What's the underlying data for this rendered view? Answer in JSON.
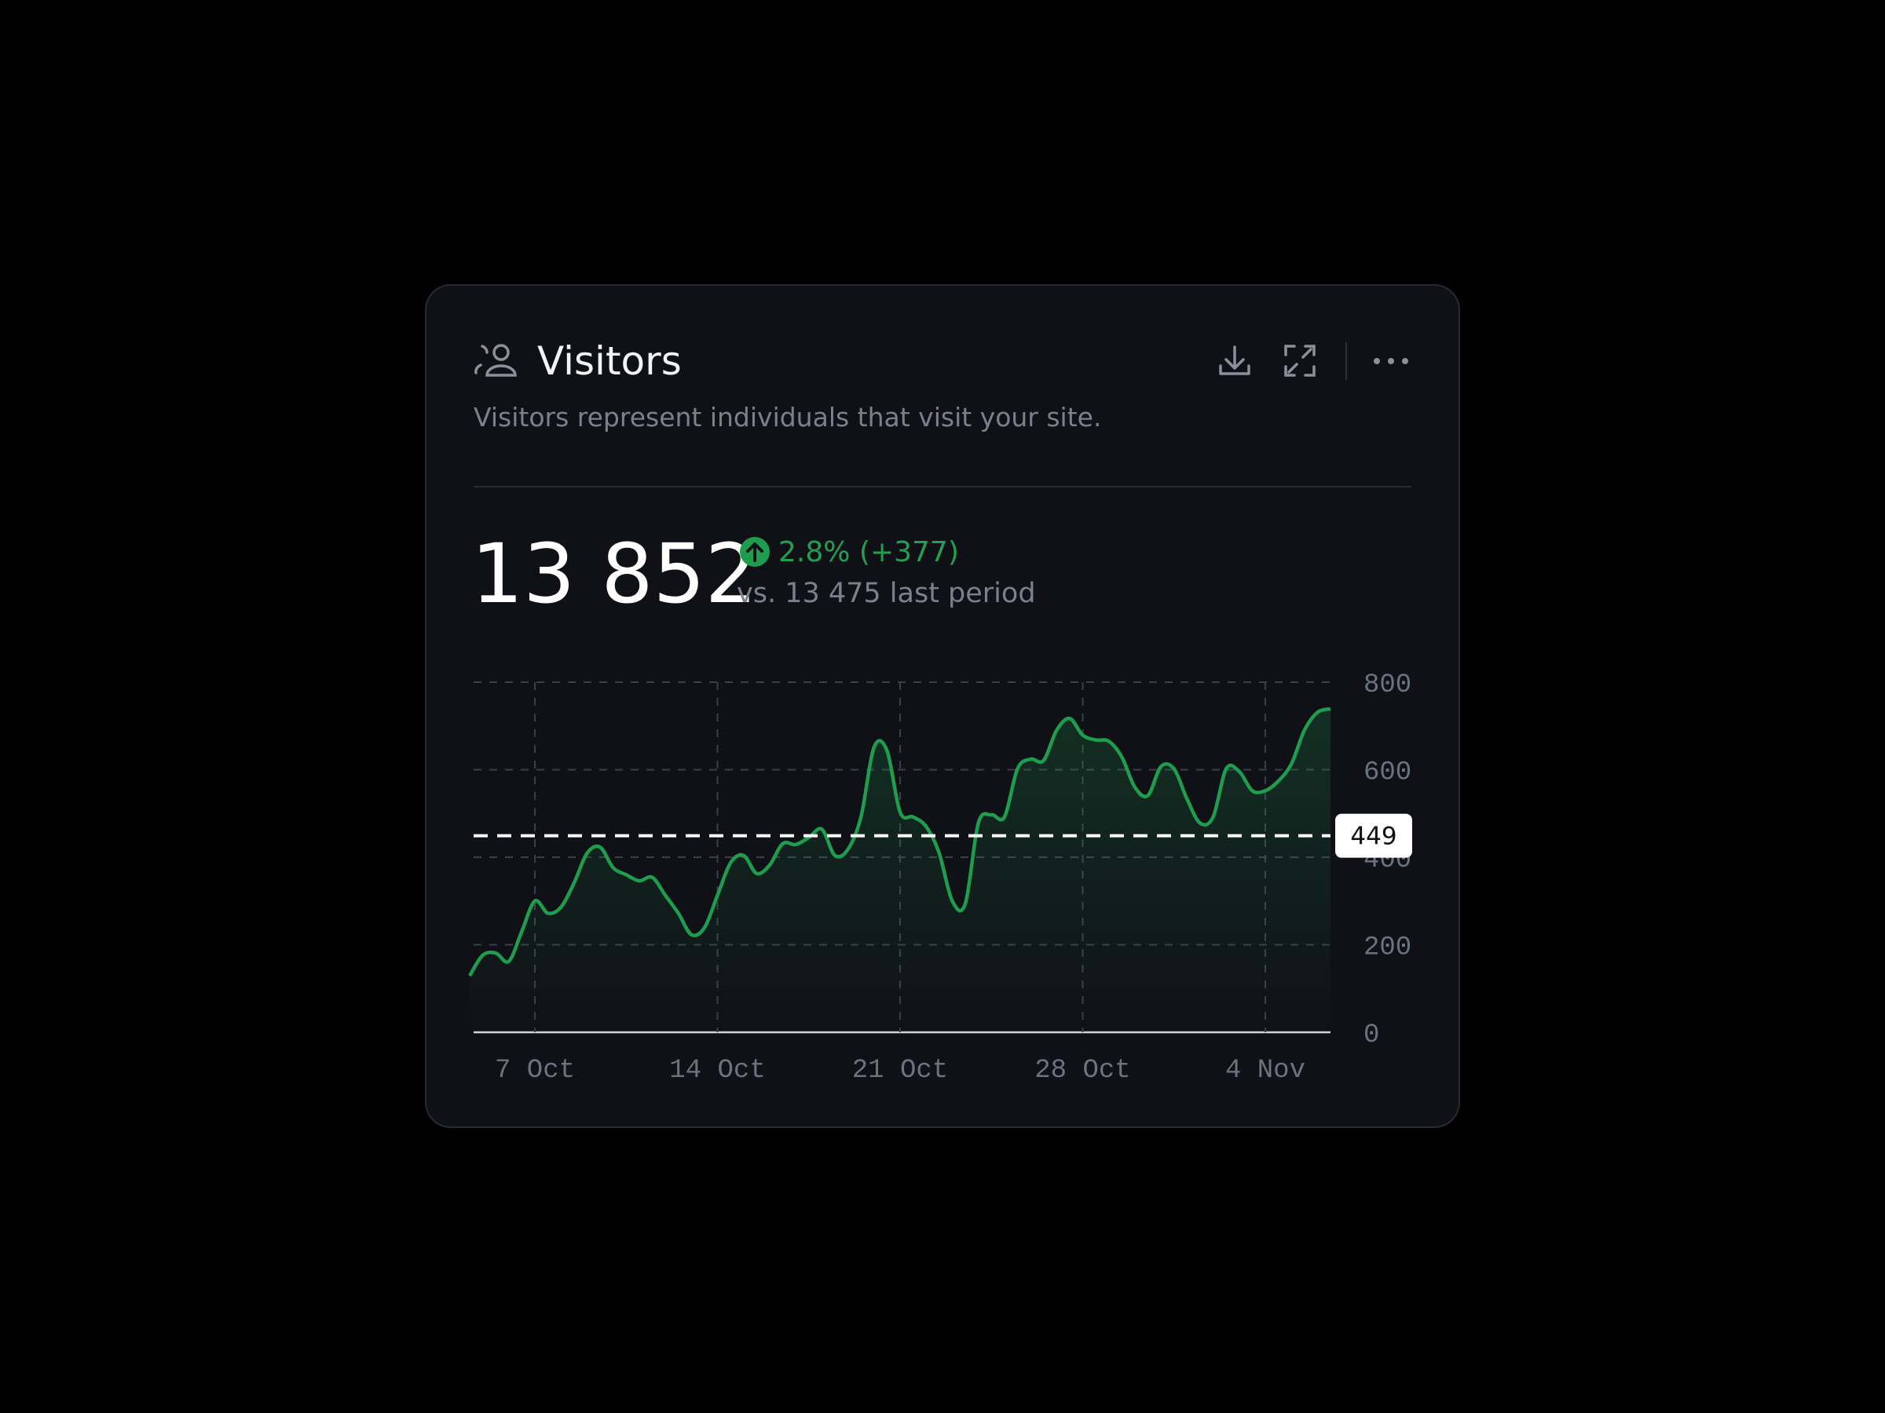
{
  "header": {
    "title": "Visitors",
    "subtitle": "Visitors represent individuals that visit your site."
  },
  "summary": {
    "total": "13 852",
    "change": "2.8% (+377)",
    "comparison": "vs. 13 475 last period"
  },
  "chart_data": {
    "type": "line",
    "categories": [
      null,
      null,
      null,
      null,
      null,
      "7 Oct",
      null,
      null,
      null,
      null,
      null,
      null,
      null,
      null,
      null,
      null,
      null,
      null,
      null,
      "14 Oct",
      null,
      null,
      null,
      null,
      null,
      null,
      null,
      null,
      null,
      null,
      null,
      null,
      null,
      "21 Oct",
      null,
      null,
      null,
      null,
      null,
      null,
      null,
      null,
      null,
      null,
      null,
      null,
      null,
      "28 Oct",
      null,
      null,
      null,
      null,
      null,
      null,
      null,
      null,
      null,
      null,
      null,
      null,
      null,
      "4 Nov",
      null,
      null,
      null,
      null,
      null
    ],
    "series": [
      {
        "name": "Visitors",
        "color": "#1f9d4f",
        "values": [
          129,
          176,
          181,
          162,
          231,
          300,
          272,
          286,
          341,
          409,
          423,
          376,
          360,
          346,
          354,
          313,
          272,
          223,
          239,
          313,
          387,
          404,
          363,
          382,
          431,
          429,
          445,
          464,
          404,
          418,
          492,
          651,
          643,
          503,
          492,
          470,
          409,
          300,
          294,
          478,
          497,
          492,
          602,
          624,
          621,
          690,
          717,
          679,
          668,
          665,
          629,
          560,
          541,
          607,
          602,
          533,
          478,
          492,
          602,
          596,
          552,
          552,
          574,
          613,
          690,
          731,
          739
        ]
      }
    ],
    "reference_line": {
      "value": 449,
      "label": "449"
    },
    "ylim": [
      0,
      800
    ],
    "yticks": [
      0,
      200,
      400,
      600,
      800
    ],
    "grid": true
  }
}
